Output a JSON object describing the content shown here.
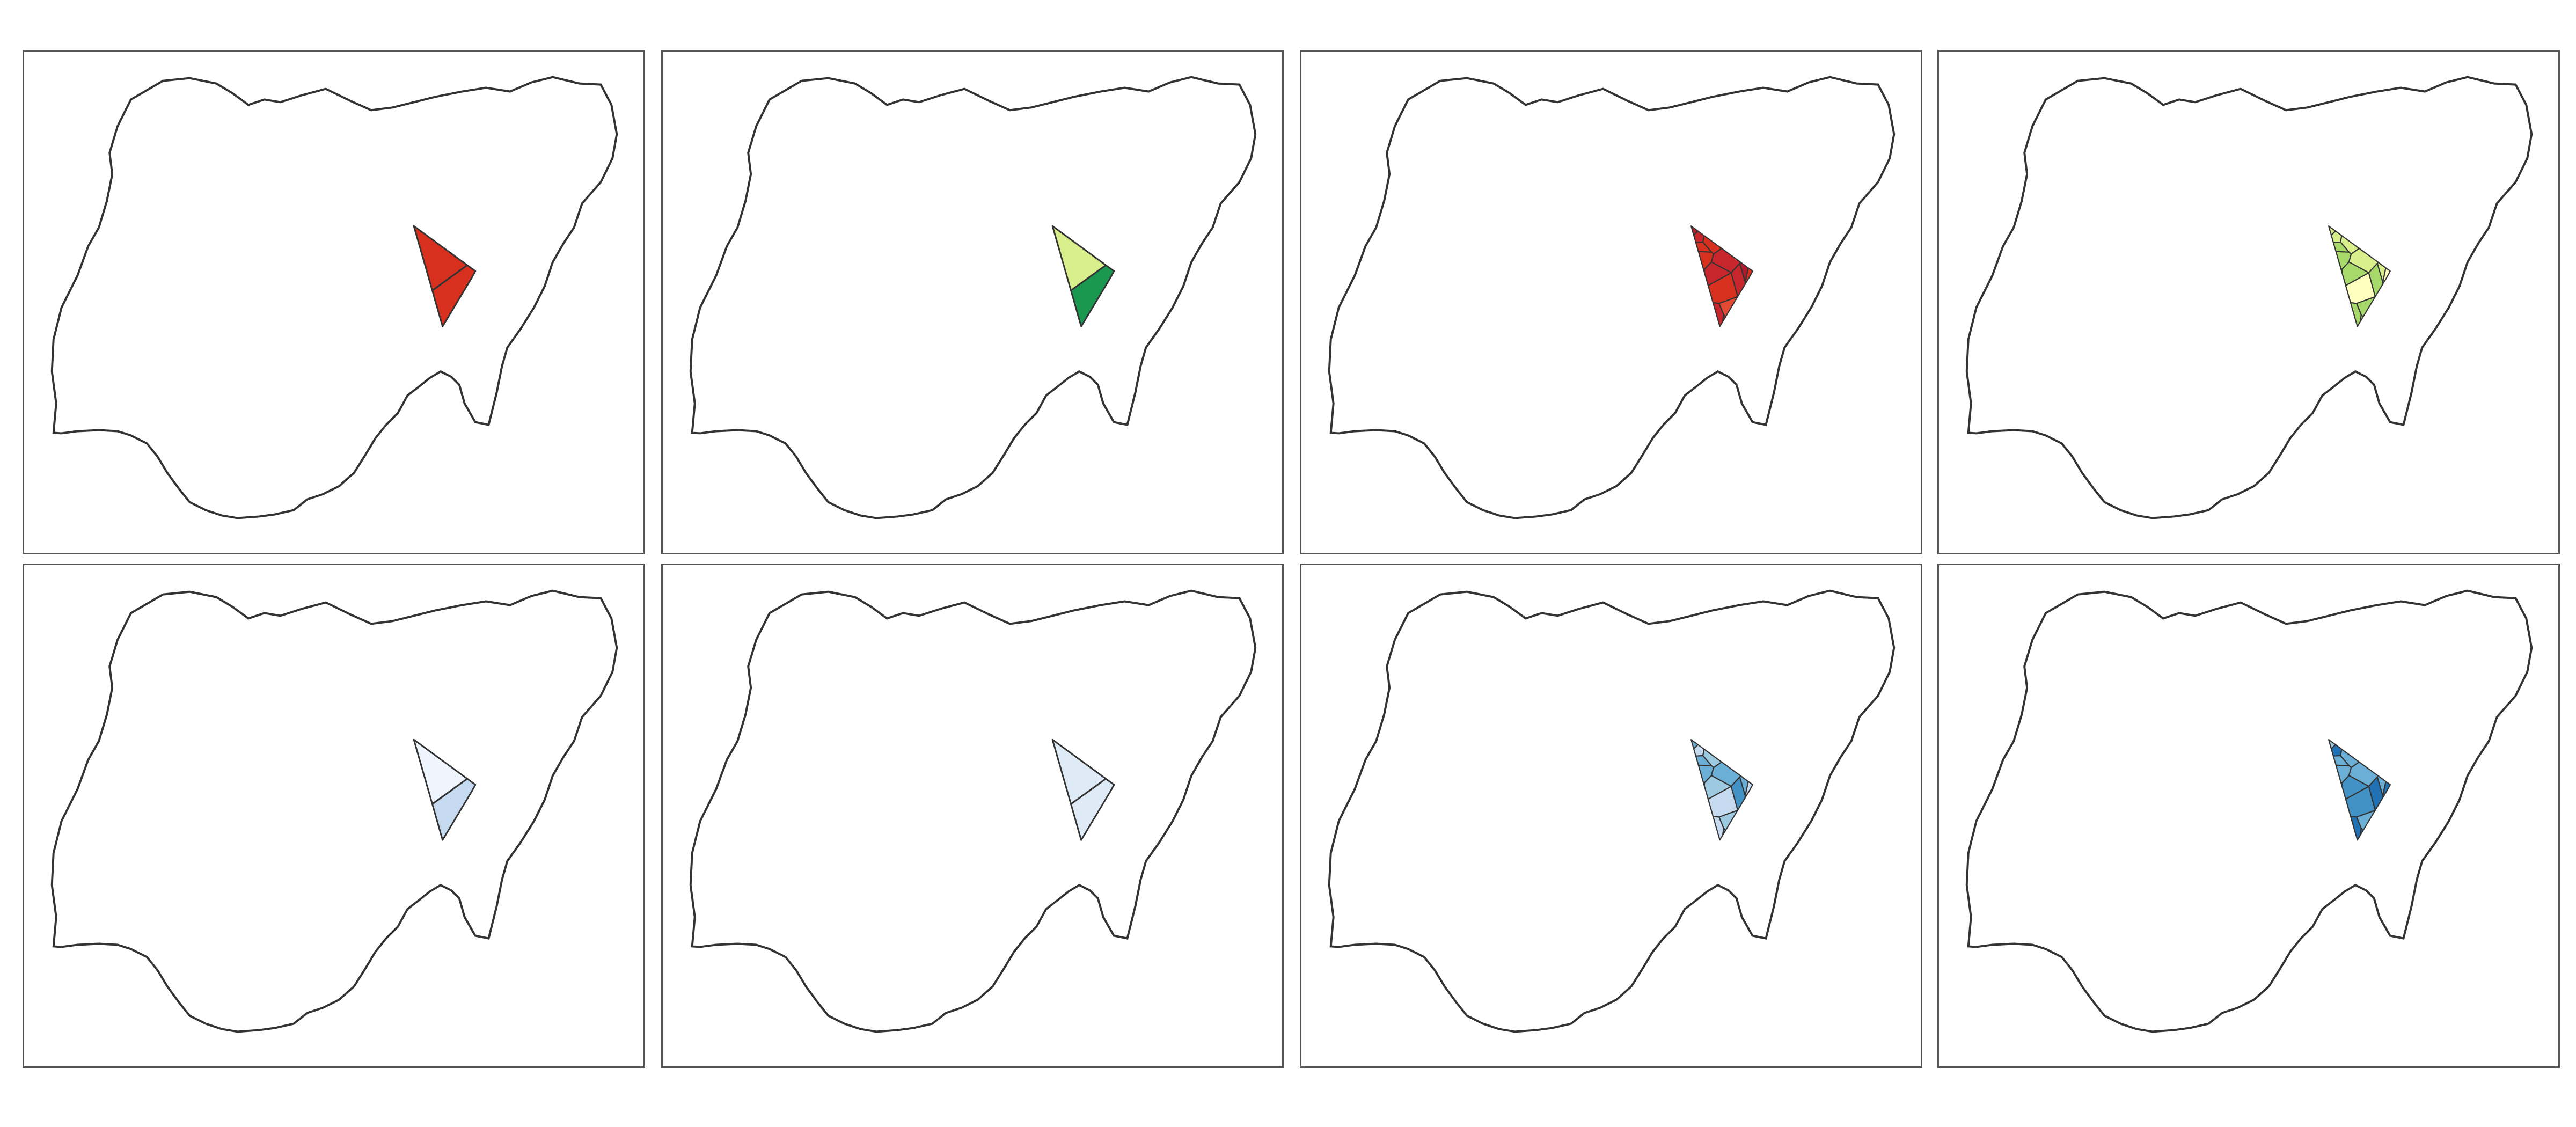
{
  "maps": [
    {
      "palette": "red-orange-diverging",
      "level": "state",
      "colors": [
        "#fdae61",
        "#f46d43",
        "#e34a33",
        "#d7301f",
        "#c6262c",
        "#b01a2c"
      ]
    },
    {
      "palette": "red-yellow-green",
      "level": "state",
      "colors": [
        "#fee08b",
        "#fdae61",
        "#f46d43",
        "#ffffbf",
        "#d9ef8b",
        "#a6d96a",
        "#66bd63",
        "#1a9850",
        "#006837"
      ]
    },
    {
      "palette": "red-orange-diverging",
      "level": "lga",
      "colors": [
        "#fdae61",
        "#f46d43",
        "#e34a33",
        "#d7301f",
        "#c6262c",
        "#b01a2c"
      ]
    },
    {
      "palette": "red-yellow-green",
      "level": "lga",
      "colors": [
        "#fee08b",
        "#fdae61",
        "#ffffbf",
        "#d9ef8b",
        "#a6d96a",
        "#66bd63",
        "#1a9850"
      ]
    },
    {
      "palette": "blues",
      "level": "state",
      "colors": [
        "#f7fbff",
        "#eef5fc",
        "#deebf7",
        "#c6dbef"
      ]
    },
    {
      "palette": "blues",
      "level": "state",
      "colors": [
        "#eef5fc",
        "#deebf7",
        "#c6dbef"
      ]
    },
    {
      "palette": "blues",
      "level": "lga",
      "colors": [
        "#deebf7",
        "#c6dbef",
        "#9ecae1",
        "#6baed6",
        "#4292c6"
      ]
    },
    {
      "palette": "blues",
      "level": "lga",
      "colors": [
        "#c6dbef",
        "#9ecae1",
        "#6baed6",
        "#4292c6",
        "#2171b5",
        "#08519c"
      ]
    }
  ],
  "outline_color": "#333333"
}
